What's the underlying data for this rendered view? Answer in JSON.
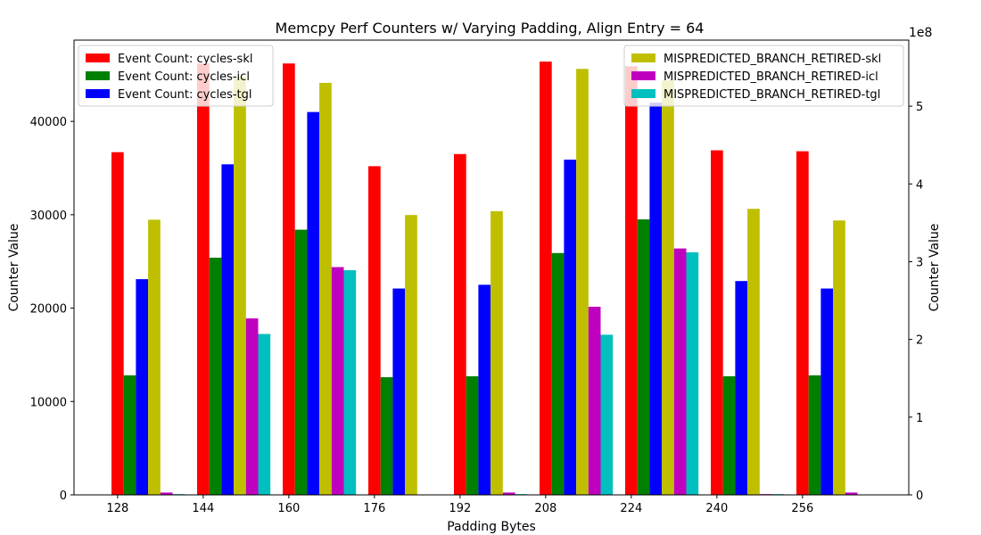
{
  "chart_data": {
    "type": "bar",
    "title": "Memcpy Perf Counters w/ Varying Padding, Align Entry = 64",
    "xlabel": "Padding Bytes",
    "ylabel_left": "Counter Value",
    "ylabel_right": "Counter Value",
    "right_axis_offset_label": "1e8",
    "categories": [
      "128",
      "144",
      "160",
      "176",
      "192",
      "208",
      "224",
      "240",
      "256"
    ],
    "ylim_left": [
      0,
      48700
    ],
    "ylim_right": [
      0,
      5.85
    ],
    "yticks_left": [
      "0",
      "10000",
      "20000",
      "30000",
      "40000"
    ],
    "yticks_right": [
      "0",
      "1",
      "2",
      "3",
      "4",
      "5"
    ],
    "left_series": [
      {
        "name": "Event Count: cycles-skl",
        "color": "#ff0000",
        "values": [
          36700,
          46200,
          46200,
          35200,
          36500,
          46400,
          45900,
          36900,
          36800
        ]
      },
      {
        "name": "Event Count: cycles-icl",
        "color": "#008000",
        "values": [
          12800,
          25400,
          28400,
          12600,
          12700,
          25900,
          29500,
          12700,
          12800
        ]
      },
      {
        "name": "Event Count: cycles-tgl",
        "color": "#0000ff",
        "values": [
          23100,
          35400,
          41000,
          22100,
          22500,
          35900,
          42000,
          22900,
          22100
        ]
      }
    ],
    "right_series": [
      {
        "name": "MISPREDICTED_BRANCH_RETIRED-skl",
        "color": "#bfbf00",
        "values": [
          3.54,
          5.38,
          5.3,
          3.6,
          3.65,
          5.48,
          5.33,
          3.68,
          3.53
        ]
      },
      {
        "name": "MISPREDICTED_BRANCH_RETIRED-icl",
        "color": "#bf00bf",
        "values": [
          0.03,
          2.27,
          2.93,
          0,
          0.03,
          2.42,
          3.17,
          0.01,
          0.03
        ]
      },
      {
        "name": "MISPREDICTED_BRANCH_RETIRED-tgl",
        "color": "#00bfbf",
        "values": [
          0.01,
          2.07,
          2.89,
          0,
          0.01,
          2.06,
          3.12,
          0.01,
          0
        ]
      }
    ],
    "legend_left_position": "upper-left",
    "legend_right_position": "upper-right",
    "grid": false
  }
}
